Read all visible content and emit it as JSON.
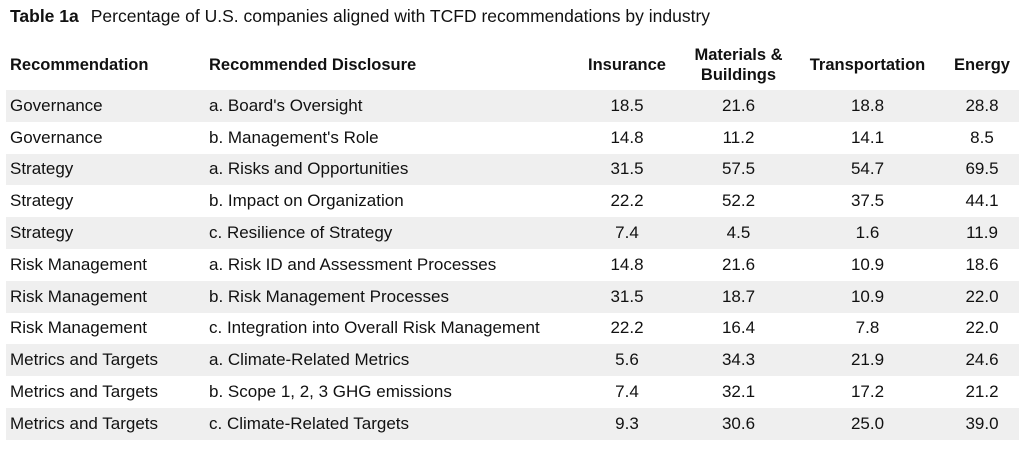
{
  "caption": {
    "label": "Table 1a",
    "text": "Percentage of U.S. companies aligned with TCFD recommendations by industry"
  },
  "columns": {
    "recommendation": "Recommendation",
    "disclosure": "Recommended Disclosure",
    "insurance": "Insurance",
    "materials_line1": "Materials &",
    "materials_line2": "Buildings",
    "transportation": "Transportation",
    "energy": "Energy"
  },
  "rows": [
    {
      "recommendation": "Governance",
      "disclosure": "a. Board's Oversight",
      "insurance": "18.5",
      "materials": "21.6",
      "transportation": "18.8",
      "energy": "28.8"
    },
    {
      "recommendation": "Governance",
      "disclosure": "b. Management's Role",
      "insurance": "14.8",
      "materials": "11.2",
      "transportation": "14.1",
      "energy": "8.5"
    },
    {
      "recommendation": "Strategy",
      "disclosure": "a. Risks and Opportunities",
      "insurance": "31.5",
      "materials": "57.5",
      "transportation": "54.7",
      "energy": "69.5"
    },
    {
      "recommendation": "Strategy",
      "disclosure": "b. Impact on Organization",
      "insurance": "22.2",
      "materials": "52.2",
      "transportation": "37.5",
      "energy": "44.1"
    },
    {
      "recommendation": "Strategy",
      "disclosure": "c. Resilience of Strategy",
      "insurance": "7.4",
      "materials": "4.5",
      "transportation": "1.6",
      "energy": "11.9"
    },
    {
      "recommendation": "Risk Management",
      "disclosure": "a. Risk ID and Assessment Processes",
      "insurance": "14.8",
      "materials": "21.6",
      "transportation": "10.9",
      "energy": "18.6"
    },
    {
      "recommendation": "Risk Management",
      "disclosure": "b. Risk Management Processes",
      "insurance": "31.5",
      "materials": "18.7",
      "transportation": "10.9",
      "energy": "22.0"
    },
    {
      "recommendation": "Risk Management",
      "disclosure": "c. Integration into Overall Risk Management",
      "insurance": "22.2",
      "materials": "16.4",
      "transportation": "7.8",
      "energy": "22.0"
    },
    {
      "recommendation": "Metrics and Targets",
      "disclosure": "a. Climate-Related Metrics",
      "insurance": "5.6",
      "materials": "34.3",
      "transportation": "21.9",
      "energy": "24.6"
    },
    {
      "recommendation": "Metrics and Targets",
      "disclosure": "b. Scope 1, 2, 3 GHG emissions",
      "insurance": "7.4",
      "materials": "32.1",
      "transportation": "17.2",
      "energy": "21.2"
    },
    {
      "recommendation": "Metrics and Targets",
      "disclosure": "c. Climate-Related Targets",
      "insurance": "9.3",
      "materials": "30.6",
      "transportation": "25.0",
      "energy": "39.0"
    }
  ]
}
